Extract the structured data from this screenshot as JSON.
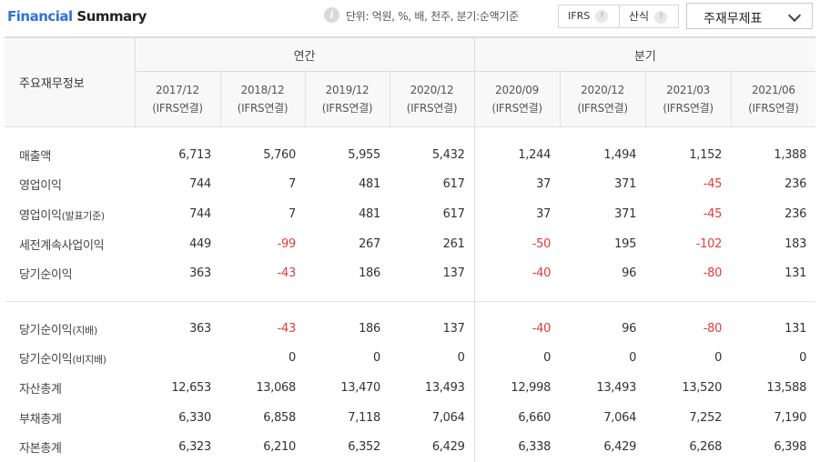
{
  "header": {
    "title_part1": "Financial",
    "title_part2": "Summary",
    "info_icon": "info-icon",
    "unit_text": "단위: 억원, %, 배, 천주, 분기:순액기준",
    "toggle": {
      "opt1": "IFRS",
      "opt2": "산식",
      "help": "?"
    },
    "select": {
      "label": "주재무제표"
    }
  },
  "table": {
    "row_header": "주요재무정보",
    "group_annual": "연간",
    "group_quarter": "분기",
    "columns": [
      {
        "period": "2017/12",
        "basis": "(IFRS연결)"
      },
      {
        "period": "2018/12",
        "basis": "(IFRS연결)"
      },
      {
        "period": "2019/12",
        "basis": "(IFRS연결)"
      },
      {
        "period": "2020/12",
        "basis": "(IFRS연결)"
      },
      {
        "period": "2020/09",
        "basis": "(IFRS연결)"
      },
      {
        "period": "2020/12",
        "basis": "(IFRS연결)"
      },
      {
        "period": "2021/03",
        "basis": "(IFRS연결)"
      },
      {
        "period": "2021/06",
        "basis": "(IFRS연결)"
      }
    ],
    "rows": [
      {
        "label": "매출액",
        "sub": "",
        "values": [
          "6,713",
          "5,760",
          "5,955",
          "5,432",
          "1,244",
          "1,494",
          "1,152",
          "1,388"
        ]
      },
      {
        "label": "영업이익",
        "sub": "",
        "values": [
          "744",
          "7",
          "481",
          "617",
          "37",
          "371",
          "-45",
          "236"
        ]
      },
      {
        "label": "영업이익",
        "sub": "(발표기준)",
        "values": [
          "744",
          "7",
          "481",
          "617",
          "37",
          "371",
          "-45",
          "236"
        ]
      },
      {
        "label": "세전계속사업이익",
        "sub": "",
        "values": [
          "449",
          "-99",
          "267",
          "261",
          "-50",
          "195",
          "-102",
          "183"
        ]
      },
      {
        "label": "당기순이익",
        "sub": "",
        "values": [
          "363",
          "-43",
          "186",
          "137",
          "-40",
          "96",
          "-80",
          "131"
        ]
      },
      {
        "label": "당기순이익",
        "sub": "(지배)",
        "values": [
          "363",
          "-43",
          "186",
          "137",
          "-40",
          "96",
          "-80",
          "131"
        ]
      },
      {
        "label": "당기순이익",
        "sub": "(비지배)",
        "values": [
          "",
          "0",
          "0",
          "0",
          "0",
          "0",
          "0",
          "0"
        ]
      },
      {
        "label": "자산총계",
        "sub": "",
        "values": [
          "12,653",
          "13,068",
          "13,470",
          "13,493",
          "12,998",
          "13,493",
          "13,520",
          "13,588"
        ]
      },
      {
        "label": "부채총계",
        "sub": "",
        "values": [
          "6,330",
          "6,858",
          "7,118",
          "7,064",
          "6,660",
          "7,064",
          "7,252",
          "7,190"
        ]
      },
      {
        "label": "자본총계",
        "sub": "",
        "values": [
          "6,323",
          "6,210",
          "6,352",
          "6,429",
          "6,338",
          "6,429",
          "6,268",
          "6,398"
        ]
      }
    ],
    "colors": {
      "negative": "#e23a3a",
      "title_blue": "#2f72d6"
    }
  }
}
